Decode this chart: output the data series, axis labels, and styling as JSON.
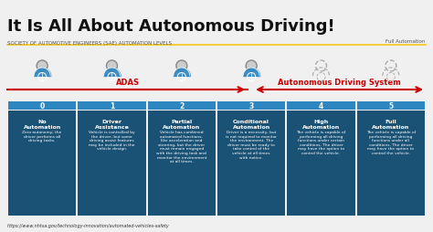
{
  "title": "It Is All About Autonomous Driving!",
  "subtitle": "SOCIETY OF AUTOMOTIVE ENGINEERS (SAE) AUTOMATION LEVELS",
  "full_automation_label": "Full Automation",
  "bg_color": "#f0f0f0",
  "title_color": "#111111",
  "subtitle_color": "#555555",
  "yellow_line_color": "#f5c518",
  "arrow_color": "#cc0000",
  "adas_label": "ADAS",
  "ads_label": "Autonomous Driving System",
  "adas_color": "#cc0000",
  "ads_color": "#cc0000",
  "levels": [
    {
      "num": "0",
      "title": "No\nAutomation",
      "desc": "Zero autonomy; the\ndriver performs all\ndriving tasks.",
      "solid": true
    },
    {
      "num": "1",
      "title": "Driver\nAssistance",
      "desc": "Vehicle is controlled by\nthe driver, but some\ndriving assist features\nmay be included in the\nvehicle design.",
      "solid": true
    },
    {
      "num": "2",
      "title": "Partial\nAutomation",
      "desc": "Vehicle has combined\nautomated functions,\nlike acceleration and\nsteering, but the driver\nmust remain engaged\nwith the driving task and\nmonitor the environment\nat all times.",
      "solid": true
    },
    {
      "num": "3",
      "title": "Conditional\nAutomation",
      "desc": "Driver is a necessity, but\nis not required to monitor\nthe environment. The\ndriver must be ready to\ntake control of the\nvehicle at all times\nwith notice.",
      "solid": true
    },
    {
      "num": "4",
      "title": "High\nAutomation",
      "desc": "The vehicle is capable of\nperforming all driving\nfunctions under certain\nconditions. The driver\nmay have the option to\ncontrol the vehicle.",
      "solid": false
    },
    {
      "num": "5",
      "title": "Full\nAutomation",
      "desc": "The vehicle is capable of\nperforming all driving\nfunctions under all\nconditions. The driver\nmay have the option to\ncontrol the vehicle.",
      "solid": false
    }
  ],
  "box_color_solid": "#1a5276",
  "box_color_light": "#2471a3",
  "num_bg_color": "#2e86c1",
  "text_color": "#ffffff",
  "footer_url": "https://www.nhtsa.gov/technology-innovation/automated-vehicles-safety"
}
